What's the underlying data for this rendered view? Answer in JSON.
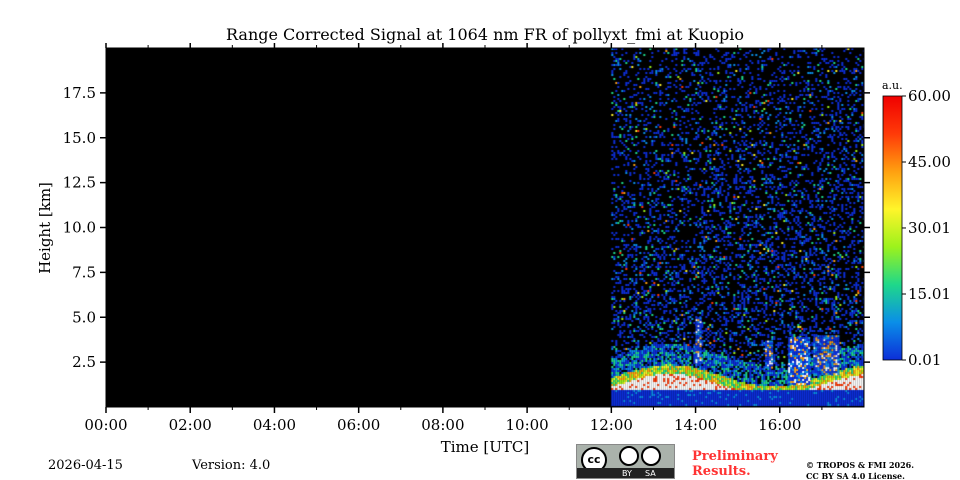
{
  "chart_data": {
    "type": "heatmap",
    "title": "Range Corrected Signal at 1064 nm FR of pollyxt_fmi at Kuopio",
    "xlabel": "Time [UTC]",
    "ylabel": "Height [km]",
    "xlim_hours": [
      0,
      18
    ],
    "ylim_km": [
      0,
      20
    ],
    "xticks": [
      "00:00",
      "02:00",
      "04:00",
      "06:00",
      "08:00",
      "10:00",
      "12:00",
      "14:00",
      "16:00"
    ],
    "xtick_hours": [
      0,
      2,
      4,
      6,
      8,
      10,
      12,
      14,
      16
    ],
    "yticks": [
      "2.5",
      "5.0",
      "7.5",
      "10.0",
      "12.5",
      "15.0",
      "17.5"
    ],
    "ytick_values": [
      2.5,
      5,
      7.5,
      10,
      12.5,
      15,
      17.5
    ],
    "data_start_hour": 12,
    "colorbar": {
      "unit": "a.u.",
      "ticks": [
        "0.01",
        "15.01",
        "30.01",
        "45.00",
        "60.00"
      ],
      "tick_values": [
        0.01,
        15.01,
        30.01,
        45.0,
        60.0
      ],
      "range": [
        0.01,
        60.0
      ],
      "colormap": [
        "#0c2ed8",
        "#0a8ee8",
        "#1fd88a",
        "#9cf21c",
        "#fff52a",
        "#ffa010",
        "#ff3a08",
        "#f00000"
      ]
    }
  },
  "footer": {
    "date": "2026-04-15",
    "version": "Version: 4.0",
    "preliminary": "Preliminary",
    "results": "Results.",
    "copyright": "© TROPOS & FMI 2026.",
    "license": "CC BY SA 4.0 License.",
    "cc_by": "BY",
    "cc_sa": "SA",
    "cc": "cc"
  }
}
